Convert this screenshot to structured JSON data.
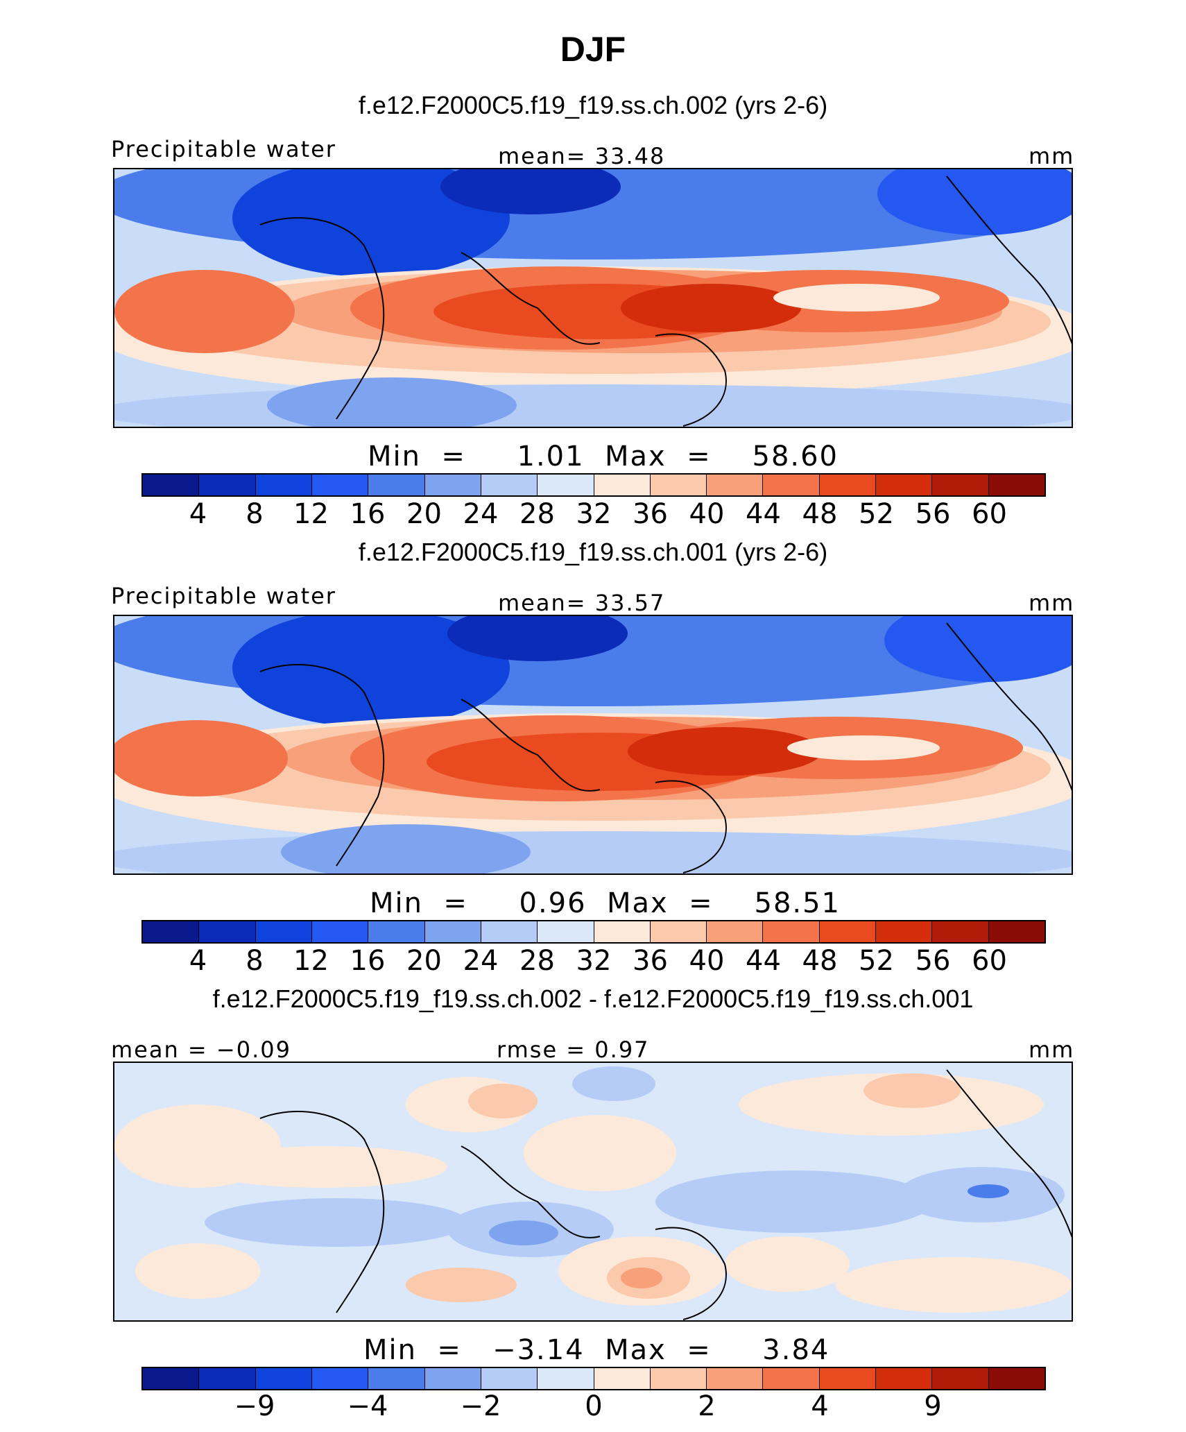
{
  "figure": {
    "title": "DJF",
    "colors": [
      "#0a1a8c",
      "#0b2bb8",
      "#1043db",
      "#2458f0",
      "#4a7cec",
      "#7ea4f0",
      "#b5cdf6",
      "#dbe8fa",
      "#fde9da",
      "#fbc9ac",
      "#f8a07a",
      "#f3744a",
      "#ea4a20",
      "#d42d0c",
      "#b01c08",
      "#8a0c04"
    ]
  },
  "panels": [
    {
      "case_title": "f.e12.F2000C5.f19_f19.ss.ch.002 (yrs 2-6)",
      "left_label": "Precipitable water",
      "center_label": "mean=   33.48",
      "right_label": "mm",
      "minmax": "Min  =     1.01  Max  =    58.60",
      "tick_labels": [
        "4",
        "8",
        "12",
        "16",
        "20",
        "24",
        "28",
        "32",
        "36",
        "40",
        "44",
        "48",
        "52",
        "56",
        "60"
      ]
    },
    {
      "case_title": "f.e12.F2000C5.f19_f19.ss.ch.001 (yrs 2-6)",
      "left_label": "Precipitable water",
      "center_label": "mean=   33.57",
      "right_label": "mm",
      "minmax": "Min  =     0.96  Max  =    58.51",
      "tick_labels": [
        "4",
        "8",
        "12",
        "16",
        "20",
        "24",
        "28",
        "32",
        "36",
        "40",
        "44",
        "48",
        "52",
        "56",
        "60"
      ]
    },
    {
      "case_title": "f.e12.F2000C5.f19_f19.ss.ch.002 - f.e12.F2000C5.f19_f19.ss.ch.001",
      "left_label": "mean =   −0.09",
      "center_label": "rmse =     0.97",
      "right_label": "mm",
      "minmax": "Min  =   −3.14  Max  =     3.84",
      "tick_labels": [
        "−9",
        "−4",
        "−2",
        "0",
        "2",
        "4",
        "9"
      ]
    }
  ],
  "chart_data": [
    {
      "type": "heatmap",
      "title": "f.e12.F2000C5.f19_f19.ss.ch.002 (yrs 2-6)",
      "variable": "Precipitable water",
      "units": "mm",
      "season": "DJF",
      "mean": 33.48,
      "min": 1.01,
      "max": 58.6,
      "contour_levels": [
        4,
        8,
        12,
        16,
        20,
        24,
        28,
        32,
        36,
        40,
        44,
        48,
        52,
        56,
        60
      ],
      "colorbar": "horizontal"
    },
    {
      "type": "heatmap",
      "title": "f.e12.F2000C5.f19_f19.ss.ch.001 (yrs 2-6)",
      "variable": "Precipitable water",
      "units": "mm",
      "season": "DJF",
      "mean": 33.57,
      "min": 0.96,
      "max": 58.51,
      "contour_levels": [
        4,
        8,
        12,
        16,
        20,
        24,
        28,
        32,
        36,
        40,
        44,
        48,
        52,
        56,
        60
      ],
      "colorbar": "horizontal"
    },
    {
      "type": "heatmap",
      "title": "f.e12.F2000C5.f19_f19.ss.ch.002 - f.e12.F2000C5.f19_f19.ss.ch.001",
      "units": "mm",
      "season": "DJF",
      "mean": -0.09,
      "rmse": 0.97,
      "min": -3.14,
      "max": 3.84,
      "contour_levels": [
        -9,
        -4,
        -2,
        0,
        2,
        4,
        9
      ],
      "colorbar": "horizontal"
    }
  ]
}
